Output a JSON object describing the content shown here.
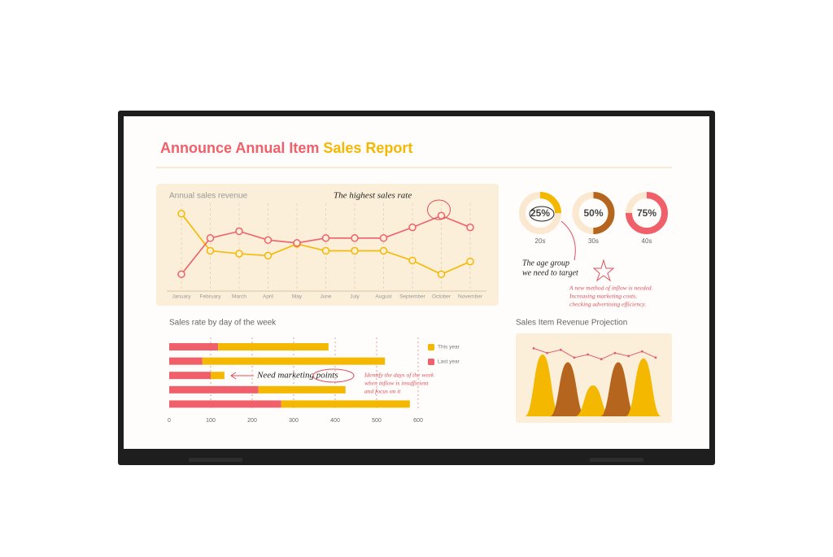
{
  "title": [
    "Announce Annual Item",
    "Sales Report"
  ],
  "chart_data": [
    {
      "type": "line",
      "title": "Annual sales revenue",
      "categories": [
        "January",
        "February",
        "March",
        "April",
        "May",
        "June",
        "July",
        "August",
        "September",
        "October",
        "November"
      ],
      "series": [
        {
          "color": "#f5b800",
          "values": [
            81,
            43,
            40,
            38,
            50,
            43,
            43,
            43,
            33,
            19,
            32
          ]
        },
        {
          "color": "#f0606a",
          "values": [
            19,
            56,
            63,
            54,
            51,
            56,
            56,
            56,
            67,
            79,
            67
          ]
        }
      ],
      "ylim": [
        0,
        100
      ],
      "annotations": [
        "The highest sales rate"
      ]
    },
    {
      "type": "donut",
      "categories": [
        "20s",
        "30s",
        "40s"
      ],
      "values": [
        25,
        50,
        75
      ],
      "value_labels": [
        "25%",
        "50%",
        "75%"
      ],
      "colors": [
        "#f5b800",
        "#b5651d",
        "#f0606a"
      ],
      "annotations": [
        [
          "The age group",
          "we need to target"
        ],
        [
          "A new method of inflow is needed.",
          "Increasing marketing costs,",
          "checking advertising efficiency."
        ]
      ]
    },
    {
      "type": "stacked-hbar",
      "title": "Sales rate by day of the week",
      "categories": [
        null,
        null,
        null,
        null,
        null
      ],
      "series": [
        {
          "name": "Last year",
          "color": "#f0606a",
          "values": [
            118,
            80,
            100,
            215,
            270
          ]
        },
        {
          "name": "This year",
          "color": "#f5b800",
          "values": [
            266,
            440,
            33,
            210,
            310
          ]
        }
      ],
      "xlim": [
        0,
        600
      ],
      "xticks": [
        0,
        100,
        200,
        300,
        400,
        500,
        600
      ],
      "grid": true,
      "annotations": [
        [
          "Need marketing points"
        ],
        [
          "Identify the days of the week",
          "when inflow is insufficient",
          "and focus on it"
        ]
      ]
    },
    {
      "type": "hump",
      "title": "Sales Item Revenue Projection",
      "values": [
        80,
        70,
        40,
        70,
        75
      ],
      "colors": [
        "#f5b800",
        "#b5651d",
        "#f5b800",
        "#b5651d",
        "#f5b800"
      ],
      "line": {
        "color": "#e0606a",
        "values": [
          88,
          82,
          86,
          76,
          80,
          74,
          82,
          78,
          84,
          76
        ]
      },
      "ylim": [
        0,
        100
      ]
    }
  ]
}
